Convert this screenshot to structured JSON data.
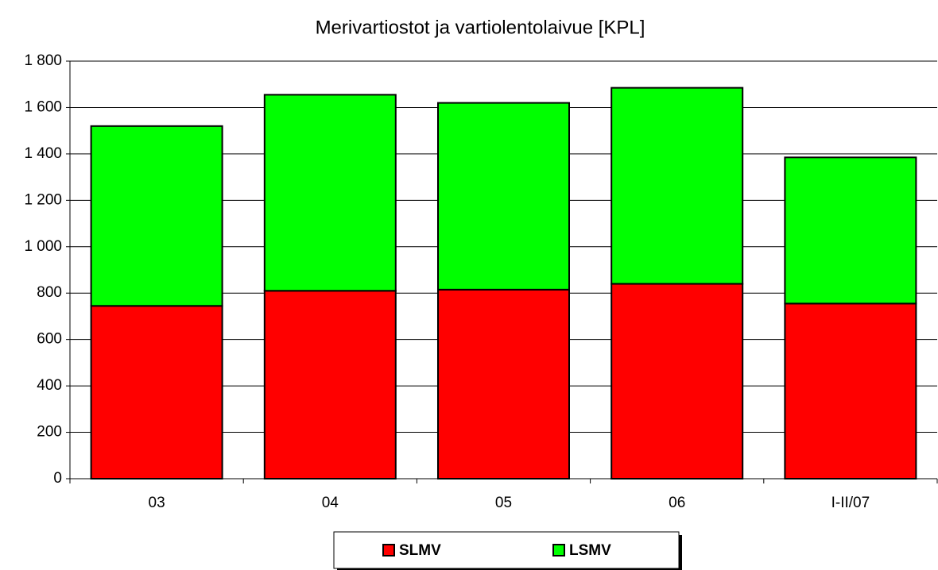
{
  "chart_data": {
    "type": "bar",
    "stacked": true,
    "title": "Merivartiostot ja vartiolentolaivue  [KPL]",
    "categories": [
      "03",
      "04",
      "05",
      "06",
      "I-II/07"
    ],
    "series": [
      {
        "name": "SLMV",
        "color": "#ff0000",
        "values": [
          745,
          810,
          815,
          840,
          755
        ]
      },
      {
        "name": "LSMV",
        "color": "#00ff00",
        "values": [
          775,
          845,
          805,
          845,
          630
        ]
      }
    ],
    "ylim": [
      0,
      1800
    ],
    "yticks": [
      0,
      200,
      400,
      600,
      800,
      {
        "value": 1000,
        "label": "1 000"
      },
      {
        "value": 1200,
        "label": "1 200"
      },
      {
        "value": 1400,
        "label": "1 400"
      },
      {
        "value": 1600,
        "label": "1 600"
      },
      {
        "value": 1800,
        "label": "1 800"
      }
    ],
    "grid": true,
    "legend": "bottom"
  }
}
